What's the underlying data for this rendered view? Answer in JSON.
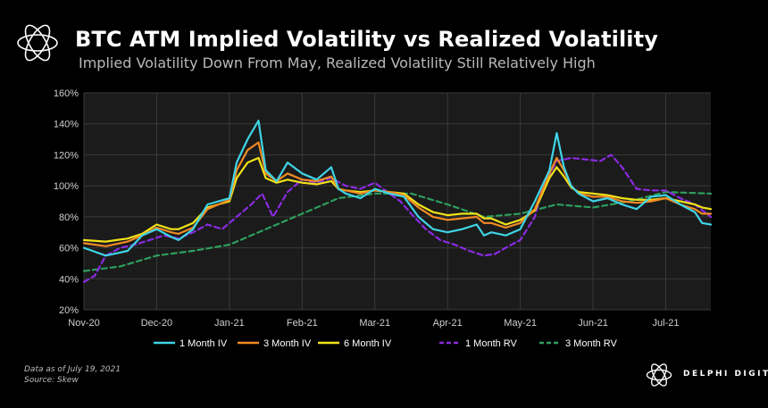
{
  "header": {
    "title": "BTC ATM Implied Volatility vs Realized Volatility",
    "subtitle": "Implied Volatility Down From May, Realized Volatility Still Relatively High"
  },
  "footer": {
    "data_as_of": "Data as of July 19, 2021",
    "source": "Source:  Skew",
    "brand": "DELPHI DIGITAL"
  },
  "icons": {
    "header_logo": "delphi-knot-logo-icon",
    "brand_logo": "delphi-knot-logo-icon"
  },
  "colors": {
    "background": "#000000",
    "plot_background": "#1b1b1b",
    "grid": "#3a3a3a"
  },
  "chart_data": {
    "type": "line",
    "title": "BTC ATM Implied Volatility vs Realized Volatility",
    "xlabel": "",
    "ylabel": "",
    "x_tick_labels": [
      "Nov-20",
      "Dec-20",
      "Jan-21",
      "Feb-21",
      "Mar-21",
      "Apr-21",
      "May-21",
      "Jun-21",
      "Jul-21"
    ],
    "y_tick_labels": [
      "20%",
      "40%",
      "60%",
      "80%",
      "100%",
      "120%",
      "140%",
      "160%"
    ],
    "ylim": [
      20,
      160
    ],
    "x_range_months": [
      0,
      8.62
    ],
    "grid": true,
    "legend_position": "bottom",
    "series": [
      {
        "name": "1 Month IV",
        "color": "#3fd4e6",
        "dash": "solid",
        "x": [
          0,
          0.3,
          0.6,
          0.8,
          1.0,
          1.2,
          1.3,
          1.5,
          1.7,
          2.0,
          2.1,
          2.25,
          2.4,
          2.5,
          2.65,
          2.8,
          3.0,
          3.2,
          3.4,
          3.5,
          3.6,
          3.8,
          4.0,
          4.2,
          4.4,
          4.6,
          4.8,
          5.0,
          5.2,
          5.4,
          5.5,
          5.6,
          5.8,
          6.0,
          6.2,
          6.4,
          6.5,
          6.6,
          6.7,
          6.8,
          7.0,
          7.2,
          7.4,
          7.6,
          7.8,
          8.0,
          8.2,
          8.4,
          8.5,
          8.62
        ],
        "y": [
          60,
          55,
          58,
          68,
          72,
          67,
          65,
          72,
          88,
          92,
          115,
          130,
          142,
          110,
          103,
          115,
          108,
          104,
          112,
          98,
          95,
          92,
          98,
          95,
          93,
          80,
          72,
          70,
          72,
          75,
          68,
          70,
          68,
          72,
          90,
          110,
          134,
          112,
          100,
          95,
          90,
          92,
          88,
          85,
          93,
          94,
          88,
          83,
          76,
          75
        ]
      },
      {
        "name": "3 Month IV",
        "color": "#f08a24",
        "dash": "solid",
        "x": [
          0,
          0.3,
          0.6,
          0.8,
          1.0,
          1.2,
          1.3,
          1.5,
          1.7,
          2.0,
          2.1,
          2.25,
          2.4,
          2.5,
          2.65,
          2.8,
          3.0,
          3.2,
          3.4,
          3.5,
          3.6,
          3.8,
          4.0,
          4.2,
          4.4,
          4.6,
          4.8,
          5.0,
          5.2,
          5.4,
          5.5,
          5.6,
          5.8,
          6.0,
          6.2,
          6.4,
          6.5,
          6.6,
          6.7,
          6.8,
          7.0,
          7.2,
          7.4,
          7.6,
          7.8,
          8.0,
          8.2,
          8.4,
          8.5,
          8.62
        ],
        "y": [
          63,
          61,
          64,
          68,
          73,
          70,
          69,
          73,
          85,
          91,
          110,
          123,
          128,
          108,
          103,
          108,
          104,
          103,
          106,
          98,
          97,
          95,
          97,
          96,
          94,
          86,
          80,
          78,
          79,
          80,
          76,
          76,
          73,
          76,
          85,
          108,
          118,
          110,
          100,
          95,
          93,
          93,
          90,
          89,
          90,
          92,
          88,
          85,
          82,
          82
        ]
      },
      {
        "name": "6 Month IV",
        "color": "#f2e318",
        "dash": "solid",
        "x": [
          0,
          0.3,
          0.6,
          0.8,
          1.0,
          1.2,
          1.3,
          1.5,
          1.7,
          2.0,
          2.1,
          2.25,
          2.4,
          2.5,
          2.65,
          2.8,
          3.0,
          3.2,
          3.4,
          3.5,
          3.6,
          3.8,
          4.0,
          4.2,
          4.4,
          4.6,
          4.8,
          5.0,
          5.2,
          5.4,
          5.5,
          5.6,
          5.8,
          6.0,
          6.2,
          6.4,
          6.5,
          6.6,
          6.7,
          6.8,
          7.0,
          7.2,
          7.4,
          7.6,
          7.8,
          8.0,
          8.2,
          8.4,
          8.5,
          8.62
        ],
        "y": [
          65,
          64,
          66,
          69,
          75,
          72,
          72,
          76,
          86,
          90,
          105,
          115,
          118,
          105,
          102,
          104,
          102,
          101,
          103,
          98,
          97,
          96,
          97,
          96,
          95,
          88,
          83,
          81,
          82,
          82,
          79,
          79,
          75,
          78,
          84,
          105,
          112,
          106,
          99,
          96,
          95,
          94,
          92,
          91,
          91,
          92,
          90,
          88,
          86,
          85
        ]
      },
      {
        "name": "1 Month RV",
        "color": "#8a2be2",
        "dash": "dashed",
        "x": [
          0,
          0.15,
          0.3,
          0.5,
          0.7,
          0.9,
          1.1,
          1.3,
          1.5,
          1.7,
          1.9,
          2.1,
          2.3,
          2.45,
          2.6,
          2.8,
          3.0,
          3.2,
          3.4,
          3.6,
          3.8,
          4.0,
          4.2,
          4.35,
          4.5,
          4.7,
          4.9,
          5.1,
          5.3,
          5.5,
          5.65,
          5.8,
          6.0,
          6.2,
          6.3,
          6.5,
          6.7,
          6.9,
          7.1,
          7.25,
          7.4,
          7.6,
          7.8,
          8.0,
          8.2,
          8.4,
          8.62
        ],
        "y": [
          38,
          42,
          55,
          60,
          62,
          65,
          68,
          66,
          70,
          75,
          72,
          80,
          88,
          95,
          80,
          96,
          104,
          102,
          105,
          100,
          98,
          102,
          95,
          90,
          82,
          72,
          65,
          62,
          58,
          55,
          56,
          60,
          65,
          80,
          98,
          116,
          118,
          117,
          116,
          120,
          112,
          98,
          97,
          97,
          92,
          88,
          80
        ]
      },
      {
        "name": "3 Month RV",
        "color": "#2e9e5e",
        "dash": "dashed",
        "x": [
          0,
          0.5,
          1.0,
          1.5,
          2.0,
          2.5,
          3.0,
          3.5,
          4.0,
          4.5,
          5.0,
          5.5,
          6.0,
          6.5,
          7.0,
          7.5,
          8.0,
          8.62
        ],
        "y": [
          45,
          48,
          55,
          58,
          62,
          72,
          82,
          92,
          95,
          95,
          88,
          80,
          82,
          88,
          86,
          90,
          96,
          95
        ]
      }
    ]
  }
}
